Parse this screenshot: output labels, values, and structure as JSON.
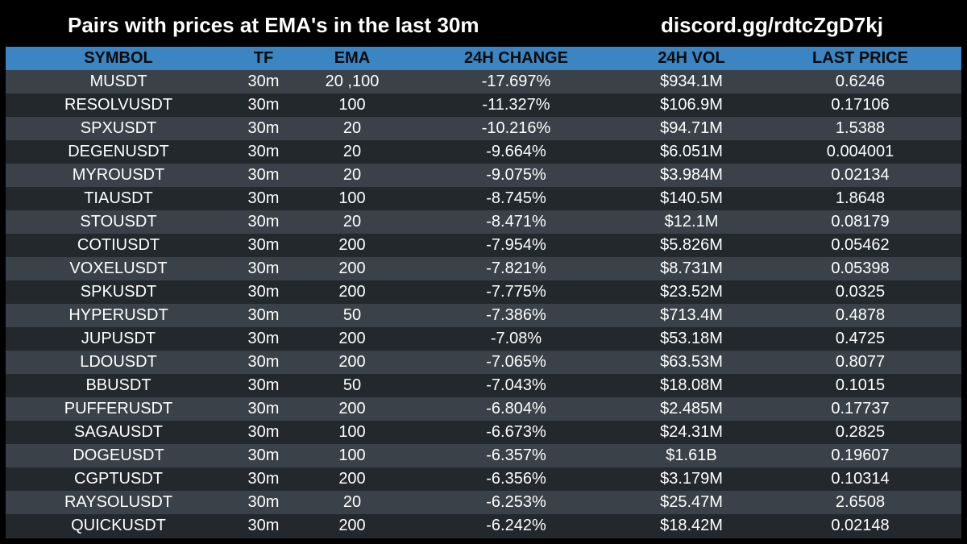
{
  "header": {
    "title": "Pairs with prices at EMA's in the last 30m",
    "discord": "discord.gg/rdtcZgD7kj"
  },
  "table": {
    "columns": [
      "SYMBOL",
      "TF",
      "EMA",
      "24H CHANGE",
      "24H VOL",
      "LAST PRICE"
    ],
    "rows": [
      [
        "MUSDT",
        "30m",
        "20 ,100",
        "-17.697%",
        "$934.1M",
        "0.6246"
      ],
      [
        "RESOLVUSDT",
        "30m",
        "100",
        "-11.327%",
        "$106.9M",
        "0.17106"
      ],
      [
        "SPXUSDT",
        "30m",
        "20",
        "-10.216%",
        "$94.71M",
        "1.5388"
      ],
      [
        "DEGENUSDT",
        "30m",
        "20",
        "-9.664%",
        "$6.051M",
        "0.004001"
      ],
      [
        "MYROUSDT",
        "30m",
        "20",
        "-9.075%",
        "$3.984M",
        "0.02134"
      ],
      [
        "TIAUSDT",
        "30m",
        "100",
        "-8.745%",
        "$140.5M",
        "1.8648"
      ],
      [
        "STOUSDT",
        "30m",
        "20",
        "-8.471%",
        "$12.1M",
        "0.08179"
      ],
      [
        "COTIUSDT",
        "30m",
        "200",
        "-7.954%",
        "$5.826M",
        "0.05462"
      ],
      [
        "VOXELUSDT",
        "30m",
        "200",
        "-7.821%",
        "$8.731M",
        "0.05398"
      ],
      [
        "SPKUSDT",
        "30m",
        "200",
        "-7.775%",
        "$23.52M",
        "0.0325"
      ],
      [
        "HYPERUSDT",
        "30m",
        "50",
        "-7.386%",
        "$713.4M",
        "0.4878"
      ],
      [
        "JUPUSDT",
        "30m",
        "200",
        "-7.08%",
        "$53.18M",
        "0.4725"
      ],
      [
        "LDOUSDT",
        "30m",
        "200",
        "-7.065%",
        "$63.53M",
        "0.8077"
      ],
      [
        "BBUSDT",
        "30m",
        "50",
        "-7.043%",
        "$18.08M",
        "0.1015"
      ],
      [
        "PUFFERUSDT",
        "30m",
        "200",
        "-6.804%",
        "$2.485M",
        "0.17737"
      ],
      [
        "SAGAUSDT",
        "30m",
        "100",
        "-6.673%",
        "$24.31M",
        "0.2825"
      ],
      [
        "DOGEUSDT",
        "30m",
        "100",
        "-6.357%",
        "$1.61B",
        "0.19607"
      ],
      [
        "CGPTUSDT",
        "30m",
        "200",
        "-6.356%",
        "$3.179M",
        "0.10314"
      ],
      [
        "RAYSOLUSDT",
        "30m",
        "20",
        "-6.253%",
        "$25.47M",
        "2.6508"
      ],
      [
        "QUICKUSDT",
        "30m",
        "200",
        "-6.242%",
        "$18.42M",
        "0.02148"
      ]
    ]
  },
  "colors": {
    "background": "#000000",
    "header_row": "#3a85c2",
    "row_light": "#3a4148",
    "row_dark": "#23282d",
    "text": "#ffffff"
  }
}
